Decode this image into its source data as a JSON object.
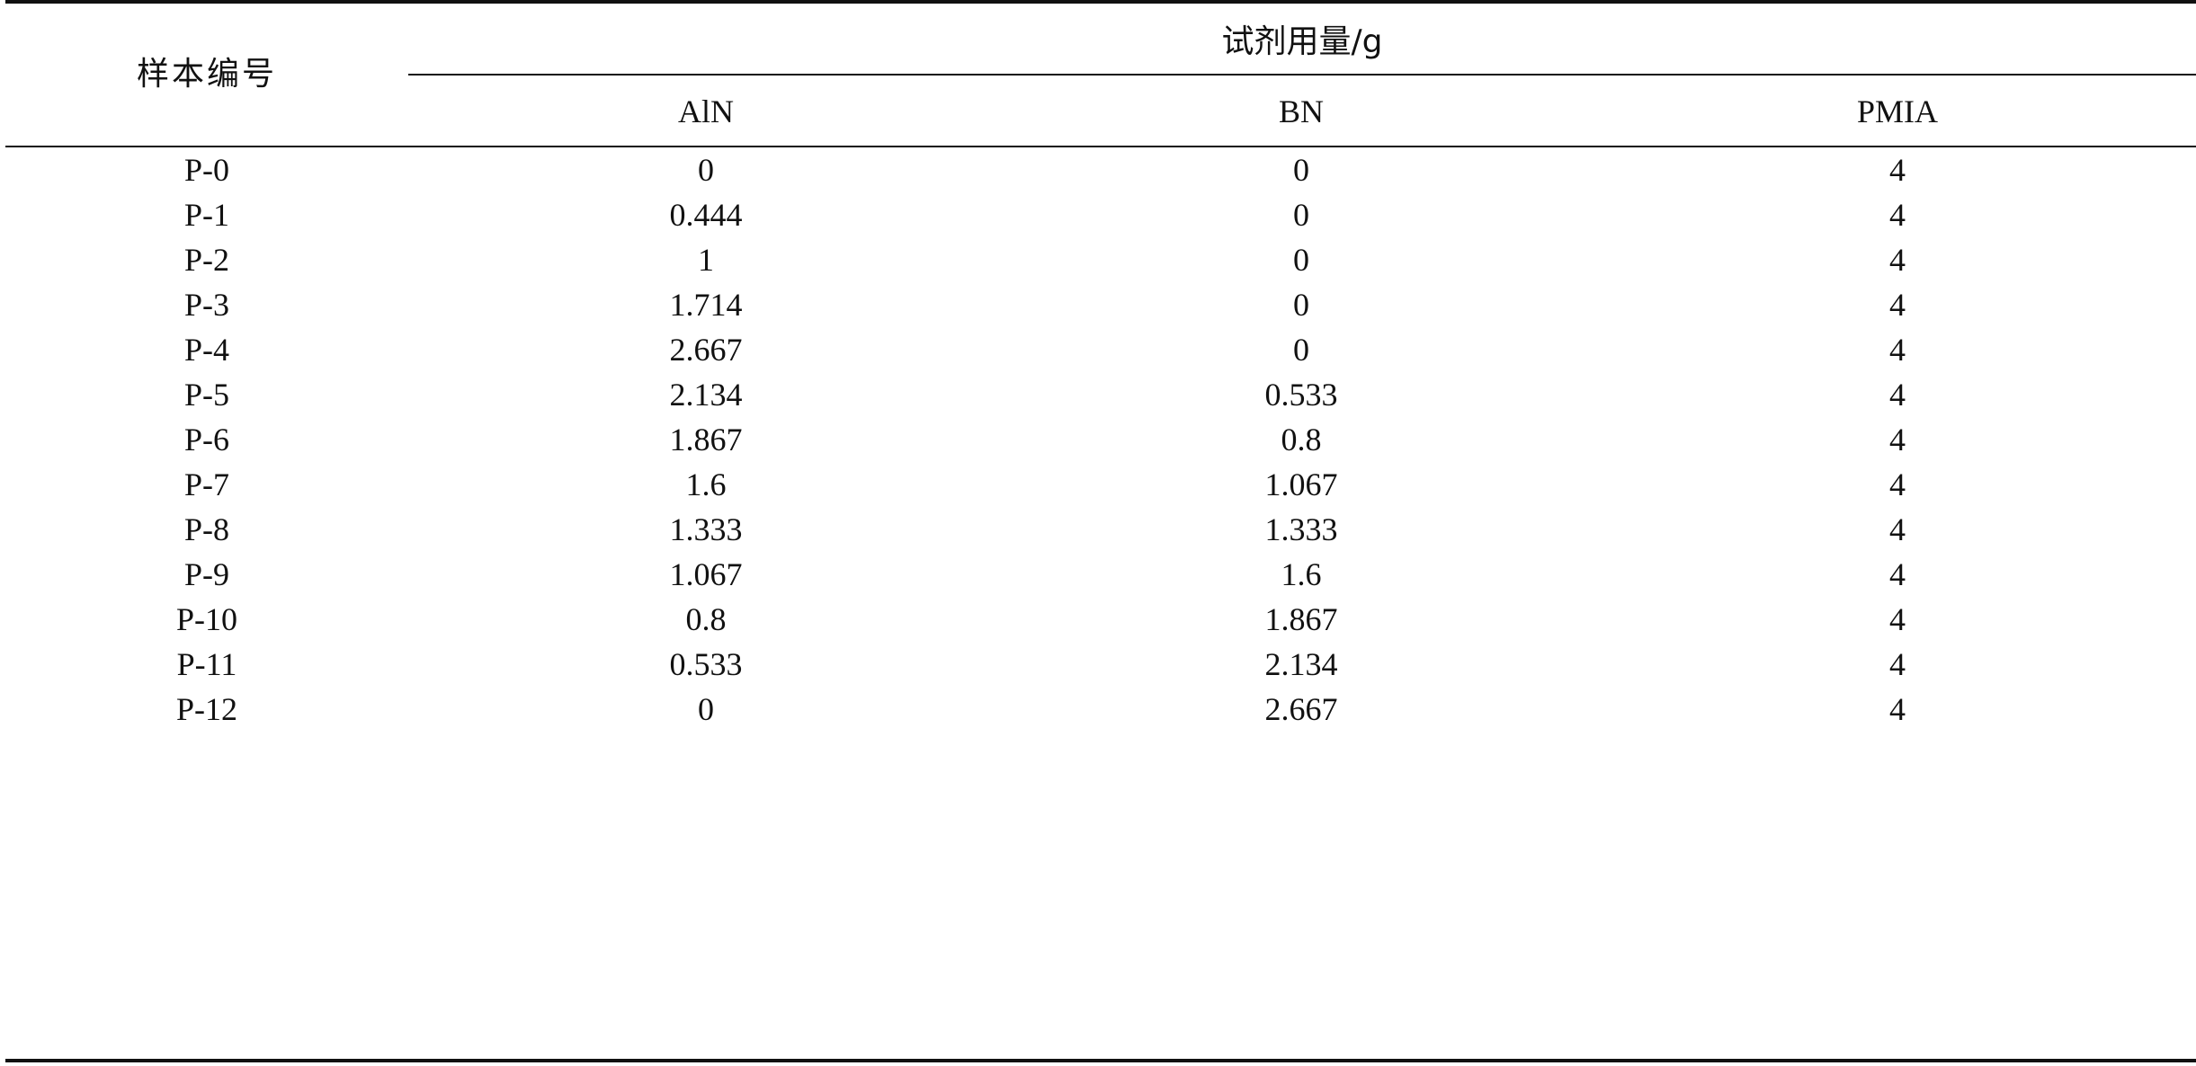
{
  "table": {
    "header": {
      "sample_label": "样本编号",
      "group_label": "试剂用量/g",
      "columns": [
        "AlN",
        "BN",
        "PMIA"
      ]
    },
    "rows": [
      {
        "sample": "P-0",
        "aln": "0",
        "bn": "0",
        "pmia": "4"
      },
      {
        "sample": "P-1",
        "aln": "0.444",
        "bn": "0",
        "pmia": "4"
      },
      {
        "sample": "P-2",
        "aln": "1",
        "bn": "0",
        "pmia": "4"
      },
      {
        "sample": "P-3",
        "aln": "1.714",
        "bn": "0",
        "pmia": "4"
      },
      {
        "sample": "P-4",
        "aln": "2.667",
        "bn": "0",
        "pmia": "4"
      },
      {
        "sample": "P-5",
        "aln": "2.134",
        "bn": "0.533",
        "pmia": "4"
      },
      {
        "sample": "P-6",
        "aln": "1.867",
        "bn": "0.8",
        "pmia": "4"
      },
      {
        "sample": "P-7",
        "aln": "1.6",
        "bn": "1.067",
        "pmia": "4"
      },
      {
        "sample": "P-8",
        "aln": "1.333",
        "bn": "1.333",
        "pmia": "4"
      },
      {
        "sample": "P-9",
        "aln": "1.067",
        "bn": "1.6",
        "pmia": "4"
      },
      {
        "sample": "P-10",
        "aln": "0.8",
        "bn": "1.867",
        "pmia": "4"
      },
      {
        "sample": "P-11",
        "aln": "0.533",
        "bn": "2.134",
        "pmia": "4"
      },
      {
        "sample": "P-12",
        "aln": "0",
        "bn": "2.667",
        "pmia": "4"
      }
    ]
  }
}
